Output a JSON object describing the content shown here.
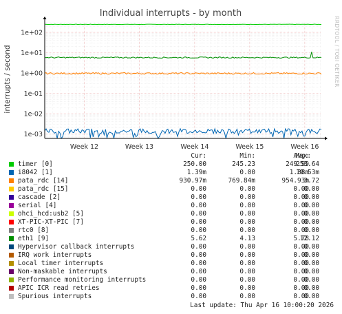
{
  "chart_data": {
    "type": "line",
    "title": "Individual interrupts - by month",
    "ylabel": "interrupts / second",
    "yscale": "log",
    "ylim": [
      0.0006,
      300
    ],
    "yticks": [
      {
        "value": 100,
        "label": "1e+02"
      },
      {
        "value": 10,
        "label": "1e+01"
      },
      {
        "value": 1,
        "label": "1e+00"
      },
      {
        "value": 0.1,
        "label": "1e-01"
      },
      {
        "value": 0.01,
        "label": "1e-02"
      },
      {
        "value": 0.001,
        "label": "1e-03"
      }
    ],
    "xticks": [
      {
        "label": "Week 12",
        "pos": 0.143
      },
      {
        "label": "Week 13",
        "pos": 0.342
      },
      {
        "label": "Week 14",
        "pos": 0.542
      },
      {
        "label": "Week 15",
        "pos": 0.741
      },
      {
        "label": "Week 16",
        "pos": 0.94
      }
    ],
    "grid": true,
    "side_label": "RRDTOOL / TOBI OETIKER",
    "series": [
      {
        "name": "timer [0]",
        "color": "#00cc00",
        "cur": "250.00",
        "min": "245.23",
        "avg": "249.99",
        "max": "253.64",
        "level": 250,
        "noise": 0.01
      },
      {
        "name": "i8042 [1]",
        "color": "#0066b3",
        "cur": "1.39m",
        "min": "0.00",
        "avg": "1.38m",
        "max": "19.53m",
        "level": 0.00138,
        "noise": 0.12,
        "dips": true
      },
      {
        "name": "pata_rdc [14]",
        "color": "#ff8000",
        "cur": "930.97m",
        "min": "769.84m",
        "avg": "954.93m",
        "max": "3.72",
        "level": 0.955,
        "noise": 0.04
      },
      {
        "name": "pata_rdc [15]",
        "color": "#ffcc00",
        "cur": "0.00",
        "min": "0.00",
        "avg": "0.00",
        "max": "0.00"
      },
      {
        "name": "cascade [2]",
        "color": "#330099",
        "cur": "0.00",
        "min": "0.00",
        "avg": "0.00",
        "max": "0.00"
      },
      {
        "name": "serial [4]",
        "color": "#990099",
        "cur": "0.00",
        "min": "0.00",
        "avg": "0.00",
        "max": "0.00"
      },
      {
        "name": "ohci_hcd:usb2 [5]",
        "color": "#ccff00",
        "cur": "0.00",
        "min": "0.00",
        "avg": "0.00",
        "max": "0.00"
      },
      {
        "name": "XT-PIC-XT-PIC [7]",
        "color": "#ff0000",
        "cur": "0.00",
        "min": "0.00",
        "avg": "0.00",
        "max": "0.00"
      },
      {
        "name": "rtc0 [8]",
        "color": "#808080",
        "cur": "0.00",
        "min": "0.00",
        "avg": "0.00",
        "max": "0.00"
      },
      {
        "name": "eth1 [9]",
        "color": "#008f00",
        "cur": "5.62",
        "min": "4.13",
        "avg": "5.78",
        "max": "12.12",
        "level": 5.78,
        "noise": 0.03,
        "spike": true
      },
      {
        "name": "Hypervisor callback interrupts",
        "color": "#00487d",
        "cur": "0.00",
        "min": "0.00",
        "avg": "0.00",
        "max": "0.00"
      },
      {
        "name": "IRQ work interrupts",
        "color": "#b35a00",
        "cur": "0.00",
        "min": "0.00",
        "avg": "0.00",
        "max": "0.00"
      },
      {
        "name": "Local timer interrupts",
        "color": "#b38f00",
        "cur": "0.00",
        "min": "0.00",
        "avg": "0.00",
        "max": "0.00"
      },
      {
        "name": "Non-maskable interrupts",
        "color": "#6b006b",
        "cur": "0.00",
        "min": "0.00",
        "avg": "0.00",
        "max": "0.00"
      },
      {
        "name": "Performance monitoring interrupts",
        "color": "#8fb300",
        "cur": "0.00",
        "min": "0.00",
        "avg": "0.00",
        "max": "0.00"
      },
      {
        "name": "APIC ICR read retries",
        "color": "#b30000",
        "cur": "0.00",
        "min": "0.00",
        "avg": "0.00",
        "max": "0.00"
      },
      {
        "name": "Spurious interrupts",
        "color": "#bebebe",
        "cur": "0.00",
        "min": "0.00",
        "avg": "0.00",
        "max": "0.00"
      }
    ]
  },
  "legend": {
    "headers": {
      "cur": "Cur:",
      "min": "Min:",
      "avg": "Avg:",
      "max": "Max:"
    }
  },
  "footer": {
    "last_update": "Last update: Thu Apr 16 10:00:20 2026"
  }
}
